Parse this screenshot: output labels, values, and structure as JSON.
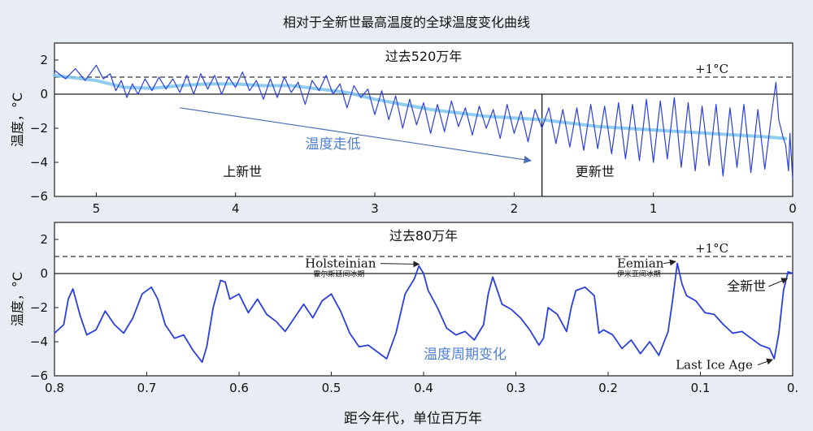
{
  "figure_title": "相对于全新世最高温度的全球温度变化曲线",
  "x_label": "距今年代，单位百万年",
  "chart_data": [
    {
      "type": "line",
      "period_label": "过去520万年",
      "ylabel": "温度，°C",
      "xlim": [
        5.3,
        0
      ],
      "ylim": [
        -6,
        3
      ],
      "xticks": [
        {
          "v": 5,
          "label": "5"
        },
        {
          "v": 4,
          "label": "4"
        },
        {
          "v": 3,
          "label": "3"
        },
        {
          "v": 2,
          "label": "2"
        },
        {
          "v": 1,
          "label": "1"
        },
        {
          "v": 0,
          "label": "0"
        }
      ],
      "yticks": [
        {
          "v": 2,
          "label": "2"
        },
        {
          "v": 0,
          "label": "0"
        },
        {
          "v": -2,
          "label": "−2"
        },
        {
          "v": -4,
          "label": "−4"
        },
        {
          "v": -6,
          "label": "−6"
        }
      ],
      "reference_line": {
        "y": 1,
        "label": "+1°C"
      },
      "zero_line": 0,
      "boundary_x": 1.8,
      "epoch_labels": [
        {
          "text": "上新世",
          "x": 3.95,
          "y": -4.8
        },
        {
          "text": "更新世",
          "x": 1.42,
          "y": -4.8
        }
      ],
      "trend_label": {
        "text": "温度走低",
        "x": 3.3,
        "y": -3.2
      },
      "trend_arrow": {
        "from": [
          4.4,
          -0.8
        ],
        "to": [
          1.88,
          -3.9
        ]
      },
      "main_color": "#2b3fe0",
      "trend_color": "#7cc4ec",
      "trend": {
        "x": [
          5.3,
          5.0,
          4.8,
          4.6,
          4.4,
          4.2,
          4.0,
          3.8,
          3.6,
          3.4,
          3.2,
          3.0,
          2.8,
          2.6,
          2.4,
          2.2,
          2.0,
          1.8,
          1.6,
          1.4,
          1.2,
          1.0,
          0.8,
          0.6,
          0.4,
          0.2,
          0.05
        ],
        "y": [
          1.1,
          0.8,
          0.4,
          0.35,
          0.5,
          0.6,
          0.6,
          0.5,
          0.5,
          0.3,
          0.1,
          -0.3,
          -0.6,
          -0.9,
          -1.1,
          -1.3,
          -1.4,
          -1.5,
          -1.7,
          -1.9,
          -2.0,
          -2.1,
          -2.2,
          -2.3,
          -2.4,
          -2.5,
          -2.6
        ]
      },
      "series": {
        "x": [
          5.3,
          5.22,
          5.15,
          5.08,
          5.0,
          4.95,
          4.9,
          4.86,
          4.82,
          4.78,
          4.74,
          4.7,
          4.65,
          4.6,
          4.55,
          4.5,
          4.45,
          4.4,
          4.35,
          4.3,
          4.25,
          4.2,
          4.15,
          4.1,
          4.05,
          4.0,
          3.95,
          3.9,
          3.85,
          3.8,
          3.75,
          3.7,
          3.65,
          3.6,
          3.55,
          3.5,
          3.45,
          3.4,
          3.35,
          3.3,
          3.25,
          3.2,
          3.15,
          3.1,
          3.05,
          3.0,
          2.95,
          2.9,
          2.85,
          2.8,
          2.75,
          2.7,
          2.65,
          2.6,
          2.55,
          2.5,
          2.45,
          2.4,
          2.35,
          2.3,
          2.25,
          2.2,
          2.15,
          2.1,
          2.05,
          2.0,
          1.95,
          1.9,
          1.85,
          1.8,
          1.75,
          1.7,
          1.65,
          1.6,
          1.55,
          1.5,
          1.45,
          1.4,
          1.35,
          1.3,
          1.25,
          1.2,
          1.15,
          1.1,
          1.05,
          1.0,
          0.95,
          0.9,
          0.85,
          0.8,
          0.75,
          0.7,
          0.65,
          0.6,
          0.55,
          0.5,
          0.45,
          0.4,
          0.35,
          0.3,
          0.25,
          0.2,
          0.15,
          0.12,
          0.1,
          0.07,
          0.05,
          0.03,
          0.02,
          0.0
        ],
        "y": [
          1.4,
          0.9,
          1.5,
          0.8,
          1.7,
          0.9,
          1.2,
          0.2,
          0.8,
          -0.2,
          0.6,
          0.0,
          0.9,
          0.2,
          1.0,
          0.3,
          0.9,
          0.1,
          1.1,
          0.0,
          1.2,
          0.3,
          1.1,
          0.0,
          1.0,
          0.4,
          1.3,
          0.2,
          0.8,
          -0.3,
          0.9,
          -0.2,
          1.0,
          0.1,
          0.7,
          -0.6,
          0.8,
          0.2,
          1.1,
          0.0,
          0.6,
          -0.8,
          0.5,
          -0.2,
          0.3,
          -1.2,
          0.2,
          -1.5,
          -0.1,
          -2.0,
          -0.3,
          -1.8,
          -0.5,
          -2.3,
          -0.6,
          -2.2,
          -0.4,
          -1.9,
          -0.8,
          -2.4,
          -0.7,
          -2.0,
          -0.9,
          -2.6,
          -0.6,
          -2.3,
          -1.0,
          -2.8,
          -0.9,
          -2.0,
          -0.8,
          -2.9,
          -0.9,
          -3.1,
          -0.8,
          -3.3,
          -0.6,
          -3.2,
          -0.7,
          -3.5,
          -0.5,
          -3.8,
          -0.6,
          -3.9,
          -0.3,
          -4.0,
          -0.4,
          -3.8,
          -0.2,
          -4.3,
          -0.5,
          -4.5,
          -0.7,
          -4.2,
          -0.6,
          -4.8,
          -0.8,
          -4.3,
          -0.6,
          -4.6,
          -0.9,
          -4.4,
          -1.1,
          0.7,
          -1.5,
          -2.5,
          -3.0,
          -4.5,
          -2.3,
          -5.0
        ]
      }
    },
    {
      "type": "line",
      "period_label": "过去80万年",
      "ylabel": "温度，°C",
      "xlim": [
        0.8,
        0
      ],
      "ylim": [
        -6,
        3
      ],
      "xticks": [
        {
          "v": 0.8,
          "label": "0.8"
        },
        {
          "v": 0.7,
          "label": "0.7"
        },
        {
          "v": 0.6,
          "label": "0.6"
        },
        {
          "v": 0.5,
          "label": "0.5"
        },
        {
          "v": 0.4,
          "label": "0.4"
        },
        {
          "v": 0.3,
          "label": "0.3"
        },
        {
          "v": 0.2,
          "label": "0.2"
        },
        {
          "v": 0.1,
          "label": "0.1"
        },
        {
          "v": 0,
          "label": "0."
        }
      ],
      "yticks": [
        {
          "v": 2,
          "label": "2"
        },
        {
          "v": 0,
          "label": "0"
        },
        {
          "v": -2,
          "label": "−2"
        },
        {
          "v": -4,
          "label": "−4"
        },
        {
          "v": -6,
          "label": "−6"
        }
      ],
      "reference_line": {
        "y": 1,
        "label": "+1°C"
      },
      "zero_line": 0,
      "cycle_label": {
        "text": "温度周期变化",
        "x": 0.355,
        "y": -5.0
      },
      "annotations": [
        {
          "name": "holsteinian",
          "text": "Holsteinian",
          "sub": "霍尔斯廷间冰期",
          "text_x": 0.49,
          "text_y": 0.35,
          "arrow_to": [
            0.405,
            0.55
          ]
        },
        {
          "name": "eemian",
          "text": "Eemian",
          "sub": "伊米亚间冰期",
          "text_x": 0.165,
          "text_y": 0.35,
          "arrow_to": [
            0.127,
            0.7
          ]
        },
        {
          "name": "holocene",
          "text": "全新世",
          "text_x": 0.05,
          "text_y": -1.0,
          "arrow_to": [
            0.006,
            -0.3
          ]
        },
        {
          "name": "last-ice-age",
          "text": "Last Ice Age",
          "text_x": 0.085,
          "text_y": -5.6,
          "arrow_to": [
            0.022,
            -5.05
          ]
        }
      ],
      "main_color": "#2b3fe0",
      "series": {
        "x": [
          0.8,
          0.79,
          0.785,
          0.78,
          0.772,
          0.765,
          0.755,
          0.745,
          0.735,
          0.725,
          0.715,
          0.705,
          0.695,
          0.688,
          0.68,
          0.67,
          0.66,
          0.65,
          0.64,
          0.635,
          0.628,
          0.62,
          0.615,
          0.61,
          0.6,
          0.59,
          0.58,
          0.57,
          0.56,
          0.55,
          0.54,
          0.53,
          0.52,
          0.51,
          0.5,
          0.49,
          0.48,
          0.47,
          0.46,
          0.45,
          0.44,
          0.43,
          0.42,
          0.41,
          0.405,
          0.4,
          0.395,
          0.385,
          0.375,
          0.365,
          0.355,
          0.345,
          0.335,
          0.33,
          0.325,
          0.315,
          0.305,
          0.295,
          0.285,
          0.275,
          0.27,
          0.265,
          0.255,
          0.245,
          0.24,
          0.235,
          0.225,
          0.215,
          0.21,
          0.205,
          0.195,
          0.185,
          0.175,
          0.165,
          0.155,
          0.145,
          0.135,
          0.13,
          0.125,
          0.12,
          0.115,
          0.105,
          0.095,
          0.085,
          0.075,
          0.065,
          0.055,
          0.045,
          0.035,
          0.025,
          0.02,
          0.015,
          0.01,
          0.005,
          0.0
        ],
        "y": [
          -3.5,
          -3.0,
          -1.5,
          -0.9,
          -2.5,
          -3.6,
          -3.3,
          -2.2,
          -3.0,
          -3.5,
          -2.6,
          -1.2,
          -0.8,
          -1.5,
          -3.0,
          -3.8,
          -3.6,
          -4.5,
          -5.2,
          -4.3,
          -2.0,
          -0.4,
          -0.5,
          -1.5,
          -1.2,
          -2.3,
          -1.5,
          -2.4,
          -2.8,
          -3.4,
          -2.6,
          -1.8,
          -2.6,
          -1.6,
          -1.2,
          -2.2,
          -3.5,
          -4.3,
          -4.2,
          -4.6,
          -5.0,
          -3.5,
          -1.2,
          -0.3,
          0.45,
          0.0,
          -1.0,
          -2.0,
          -3.2,
          -3.6,
          -3.4,
          -3.9,
          -3.0,
          -1.2,
          -0.2,
          -1.8,
          -2.1,
          -2.6,
          -3.3,
          -4.2,
          -3.8,
          -2.0,
          -2.4,
          -3.4,
          -2.0,
          -1.0,
          -0.8,
          -1.3,
          -3.5,
          -3.3,
          -3.6,
          -4.4,
          -3.9,
          -4.7,
          -4.0,
          -4.8,
          -3.4,
          -1.5,
          0.6,
          -0.6,
          -1.3,
          -1.6,
          -2.3,
          -2.4,
          -3.0,
          -3.5,
          -3.4,
          -3.8,
          -4.2,
          -4.4,
          -5.0,
          -3.5,
          -1.0,
          0.1,
          0.0
        ]
      }
    }
  ]
}
